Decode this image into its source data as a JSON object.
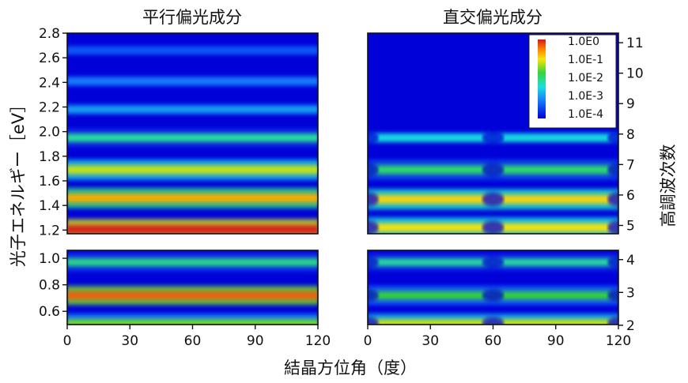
{
  "chart_data": {
    "type": "heatmap",
    "xlabel": "結晶方位角（度）",
    "x_ticks": [
      0,
      30,
      60,
      90,
      120
    ],
    "xlim": [
      0,
      120
    ],
    "ylabel_left": "光子エネルギー［eV］",
    "ylabel_right": "高調波次数",
    "colorbar": {
      "scale": "log",
      "labels": [
        "1.0E0",
        "1.0E-1",
        "1.0E-2",
        "1.0E-3",
        "1.0E-4"
      ],
      "colors": [
        "#d7191c",
        "#ff8c00",
        "#f2e60a",
        "#36d43a",
        "#19e0e0",
        "#1777ff",
        "#0000d8"
      ]
    },
    "panels": [
      {
        "title": "平行偏光成分",
        "parts": [
          {
            "ylim": [
              1.17,
              2.8
            ],
            "y_ticks": [
              1.2,
              1.4,
              1.6,
              1.8,
              2.0,
              2.2,
              2.4,
              2.6,
              2.8
            ],
            "bands": [
              {
                "y": 1.205,
                "log_intensity": -0.05
              },
              {
                "y": 1.46,
                "log_intensity": -0.9
              },
              {
                "y": 1.69,
                "log_intensity": -1.5
              },
              {
                "y": 1.95,
                "log_intensity": -2.4
              },
              {
                "y": 2.18,
                "log_intensity": -3.1
              },
              {
                "y": 2.41,
                "log_intensity": -3.3
              },
              {
                "y": 2.66,
                "log_intensity": -3.5
              }
            ]
          },
          {
            "ylim": [
              0.5,
              1.06
            ],
            "y_ticks": [
              0.6,
              0.8,
              1.0
            ],
            "bands": [
              {
                "y": 0.51,
                "log_intensity": -1.8
              },
              {
                "y": 0.72,
                "log_intensity": -0.4
              },
              {
                "y": 0.97,
                "log_intensity": -2.3
              }
            ]
          }
        ]
      },
      {
        "title": "直交偏光成分",
        "parts": [
          {
            "ylim": [
              1.17,
              2.8
            ],
            "right_ticks": [
              5,
              6,
              7,
              8,
              9,
              10,
              11
            ],
            "bands": [
              {
                "y": 1.22,
                "log_intensity": -1.3
              },
              {
                "y": 1.45,
                "log_intensity": -1.2
              },
              {
                "y": 1.69,
                "log_intensity": -2.2
              },
              {
                "y": 1.95,
                "log_intensity": -2.7
              }
            ]
          },
          {
            "ylim": [
              0.5,
              1.06
            ],
            "right_ticks": [
              2,
              3,
              4
            ],
            "bands": [
              {
                "y": 0.51,
                "log_intensity": -1.5
              },
              {
                "y": 0.72,
                "log_intensity": -2.0
              },
              {
                "y": 0.97,
                "log_intensity": -2.4
              }
            ]
          }
        ]
      }
    ]
  }
}
